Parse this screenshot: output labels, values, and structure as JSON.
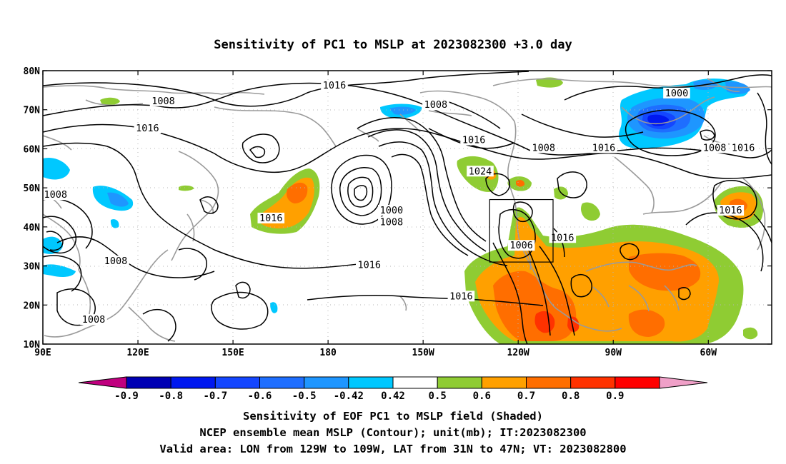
{
  "title": "Sensitivity of PC1 to MSLP at 2023082300 +3.0 day",
  "map": {
    "lon_labels": [
      "90E",
      "120E",
      "150E",
      "180",
      "150W",
      "120W",
      "90W",
      "60W"
    ],
    "lon_values": [
      90,
      120,
      150,
      180,
      210,
      240,
      270,
      300
    ],
    "lat_labels": [
      "80N",
      "70N",
      "60N",
      "50N",
      "40N",
      "30N",
      "20N",
      "10N"
    ],
    "lat_values": [
      80,
      70,
      60,
      50,
      40,
      30,
      20,
      10
    ],
    "lon_range": [
      90,
      320
    ],
    "lat_range": [
      10,
      80
    ],
    "grid": "dotted",
    "valid_box": {
      "lon": [
        231,
        251
      ],
      "lat": [
        31,
        47
      ]
    },
    "contour_labels": [
      {
        "text": "1016",
        "lon": 182,
        "lat": 76
      },
      {
        "text": "1008",
        "lon": 128,
        "lat": 72
      },
      {
        "text": "1008",
        "lon": 214,
        "lat": 71
      },
      {
        "text": "1000",
        "lon": 290,
        "lat": 74
      },
      {
        "text": "1016",
        "lon": 123,
        "lat": 65
      },
      {
        "text": "1016",
        "lon": 226,
        "lat": 62
      },
      {
        "text": "1008",
        "lon": 248,
        "lat": 60
      },
      {
        "text": "1016",
        "lon": 267,
        "lat": 60
      },
      {
        "text": "1008",
        "lon": 302,
        "lat": 60
      },
      {
        "text": "1016",
        "lon": 311,
        "lat": 60
      },
      {
        "text": "1024",
        "lon": 228,
        "lat": 54
      },
      {
        "text": "1008",
        "lon": 94,
        "lat": 48
      },
      {
        "text": "1000",
        "lon": 200,
        "lat": 44
      },
      {
        "text": "1008",
        "lon": 200,
        "lat": 41
      },
      {
        "text": "1016",
        "lon": 162,
        "lat": 42
      },
      {
        "text": "1016",
        "lon": 307,
        "lat": 44
      },
      {
        "text": "1006",
        "lon": 241,
        "lat": 35
      },
      {
        "text": "1016",
        "lon": 254,
        "lat": 37
      },
      {
        "text": "1008",
        "lon": 113,
        "lat": 31
      },
      {
        "text": "1016",
        "lon": 193,
        "lat": 30
      },
      {
        "text": "1016",
        "lon": 222,
        "lat": 22
      },
      {
        "text": "1008",
        "lon": 106,
        "lat": 16
      }
    ]
  },
  "colorbar": {
    "labels": [
      "-0.9",
      "-0.8",
      "-0.7",
      "-0.6",
      "-0.5",
      "-0.42",
      "0.42",
      "0.5",
      "0.6",
      "0.7",
      "0.8",
      "0.9"
    ],
    "colors": [
      "#c0007f",
      "#0000b4",
      "#0018f0",
      "#1446ff",
      "#1e6eff",
      "#1e96ff",
      "#00c8ff",
      "#ffffff",
      "#8fcc33",
      "#ffa000",
      "#ff6e00",
      "#ff3200",
      "#ff0000",
      "#f0a0c8"
    ]
  },
  "captions": [
    "Sensitivity of EOF PC1 to MSLP field (Shaded)",
    "NCEP ensemble mean MSLP (Contour); unit(mb); IT:2023082300",
    "Valid area: LON from 129W to 109W, LAT from 31N to 47N; VT: 2023082800"
  ]
}
